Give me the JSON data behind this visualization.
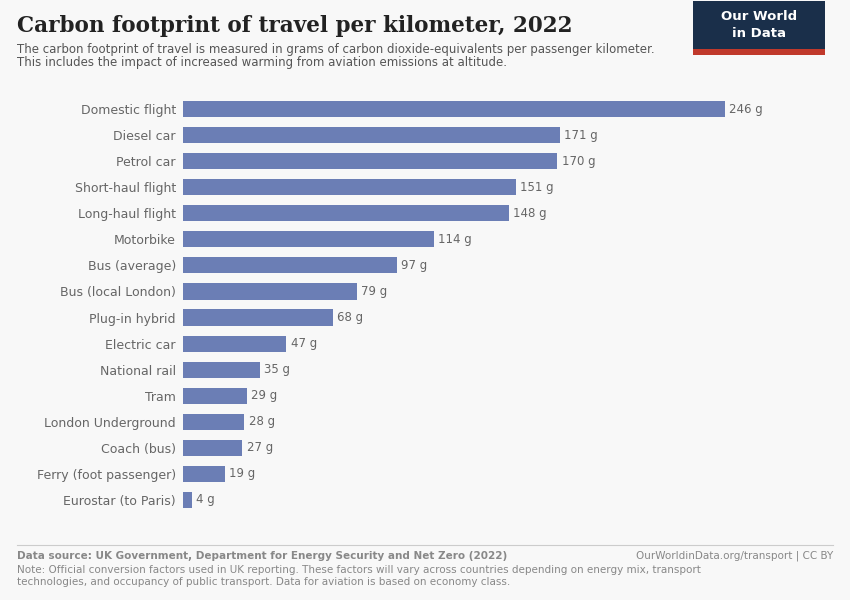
{
  "title": "Carbon footprint of travel per kilometer, 2022",
  "subtitle_line1": "The carbon footprint of travel is measured in grams of carbon dioxide-equivalents per passenger kilometer.",
  "subtitle_line2": "This includes the impact of increased warming from aviation emissions at altitude.",
  "categories": [
    "Domestic flight",
    "Diesel car",
    "Petrol car",
    "Short-haul flight",
    "Long-haul flight",
    "Motorbike",
    "Bus (average)",
    "Bus (local London)",
    "Plug-in hybrid",
    "Electric car",
    "National rail",
    "Tram",
    "London Underground",
    "Coach (bus)",
    "Ferry (foot passenger)",
    "Eurostar (to Paris)"
  ],
  "values": [
    246,
    171,
    170,
    151,
    148,
    114,
    97,
    79,
    68,
    47,
    35,
    29,
    28,
    27,
    19,
    4
  ],
  "bar_color": "#6b7eb5",
  "background_color": "#f8f8f8",
  "label_color": "#666666",
  "title_color": "#222222",
  "subtitle_color": "#555555",
  "footer_color": "#888888",
  "data_source": "Data source: UK Government, Department for Energy Security and Net Zero (2022)",
  "data_source_right": "OurWorldinData.org/transport | CC BY",
  "note_line1": "Note: Official conversion factors used in UK reporting. These factors will vary across countries depending on energy mix, transport",
  "note_line2": "technologies, and occupancy of public transport. Data for aviation is based on economy class.",
  "owid_box_color": "#1a2f4a",
  "owid_box_red": "#c0392b",
  "xlim": [
    0,
    270
  ]
}
